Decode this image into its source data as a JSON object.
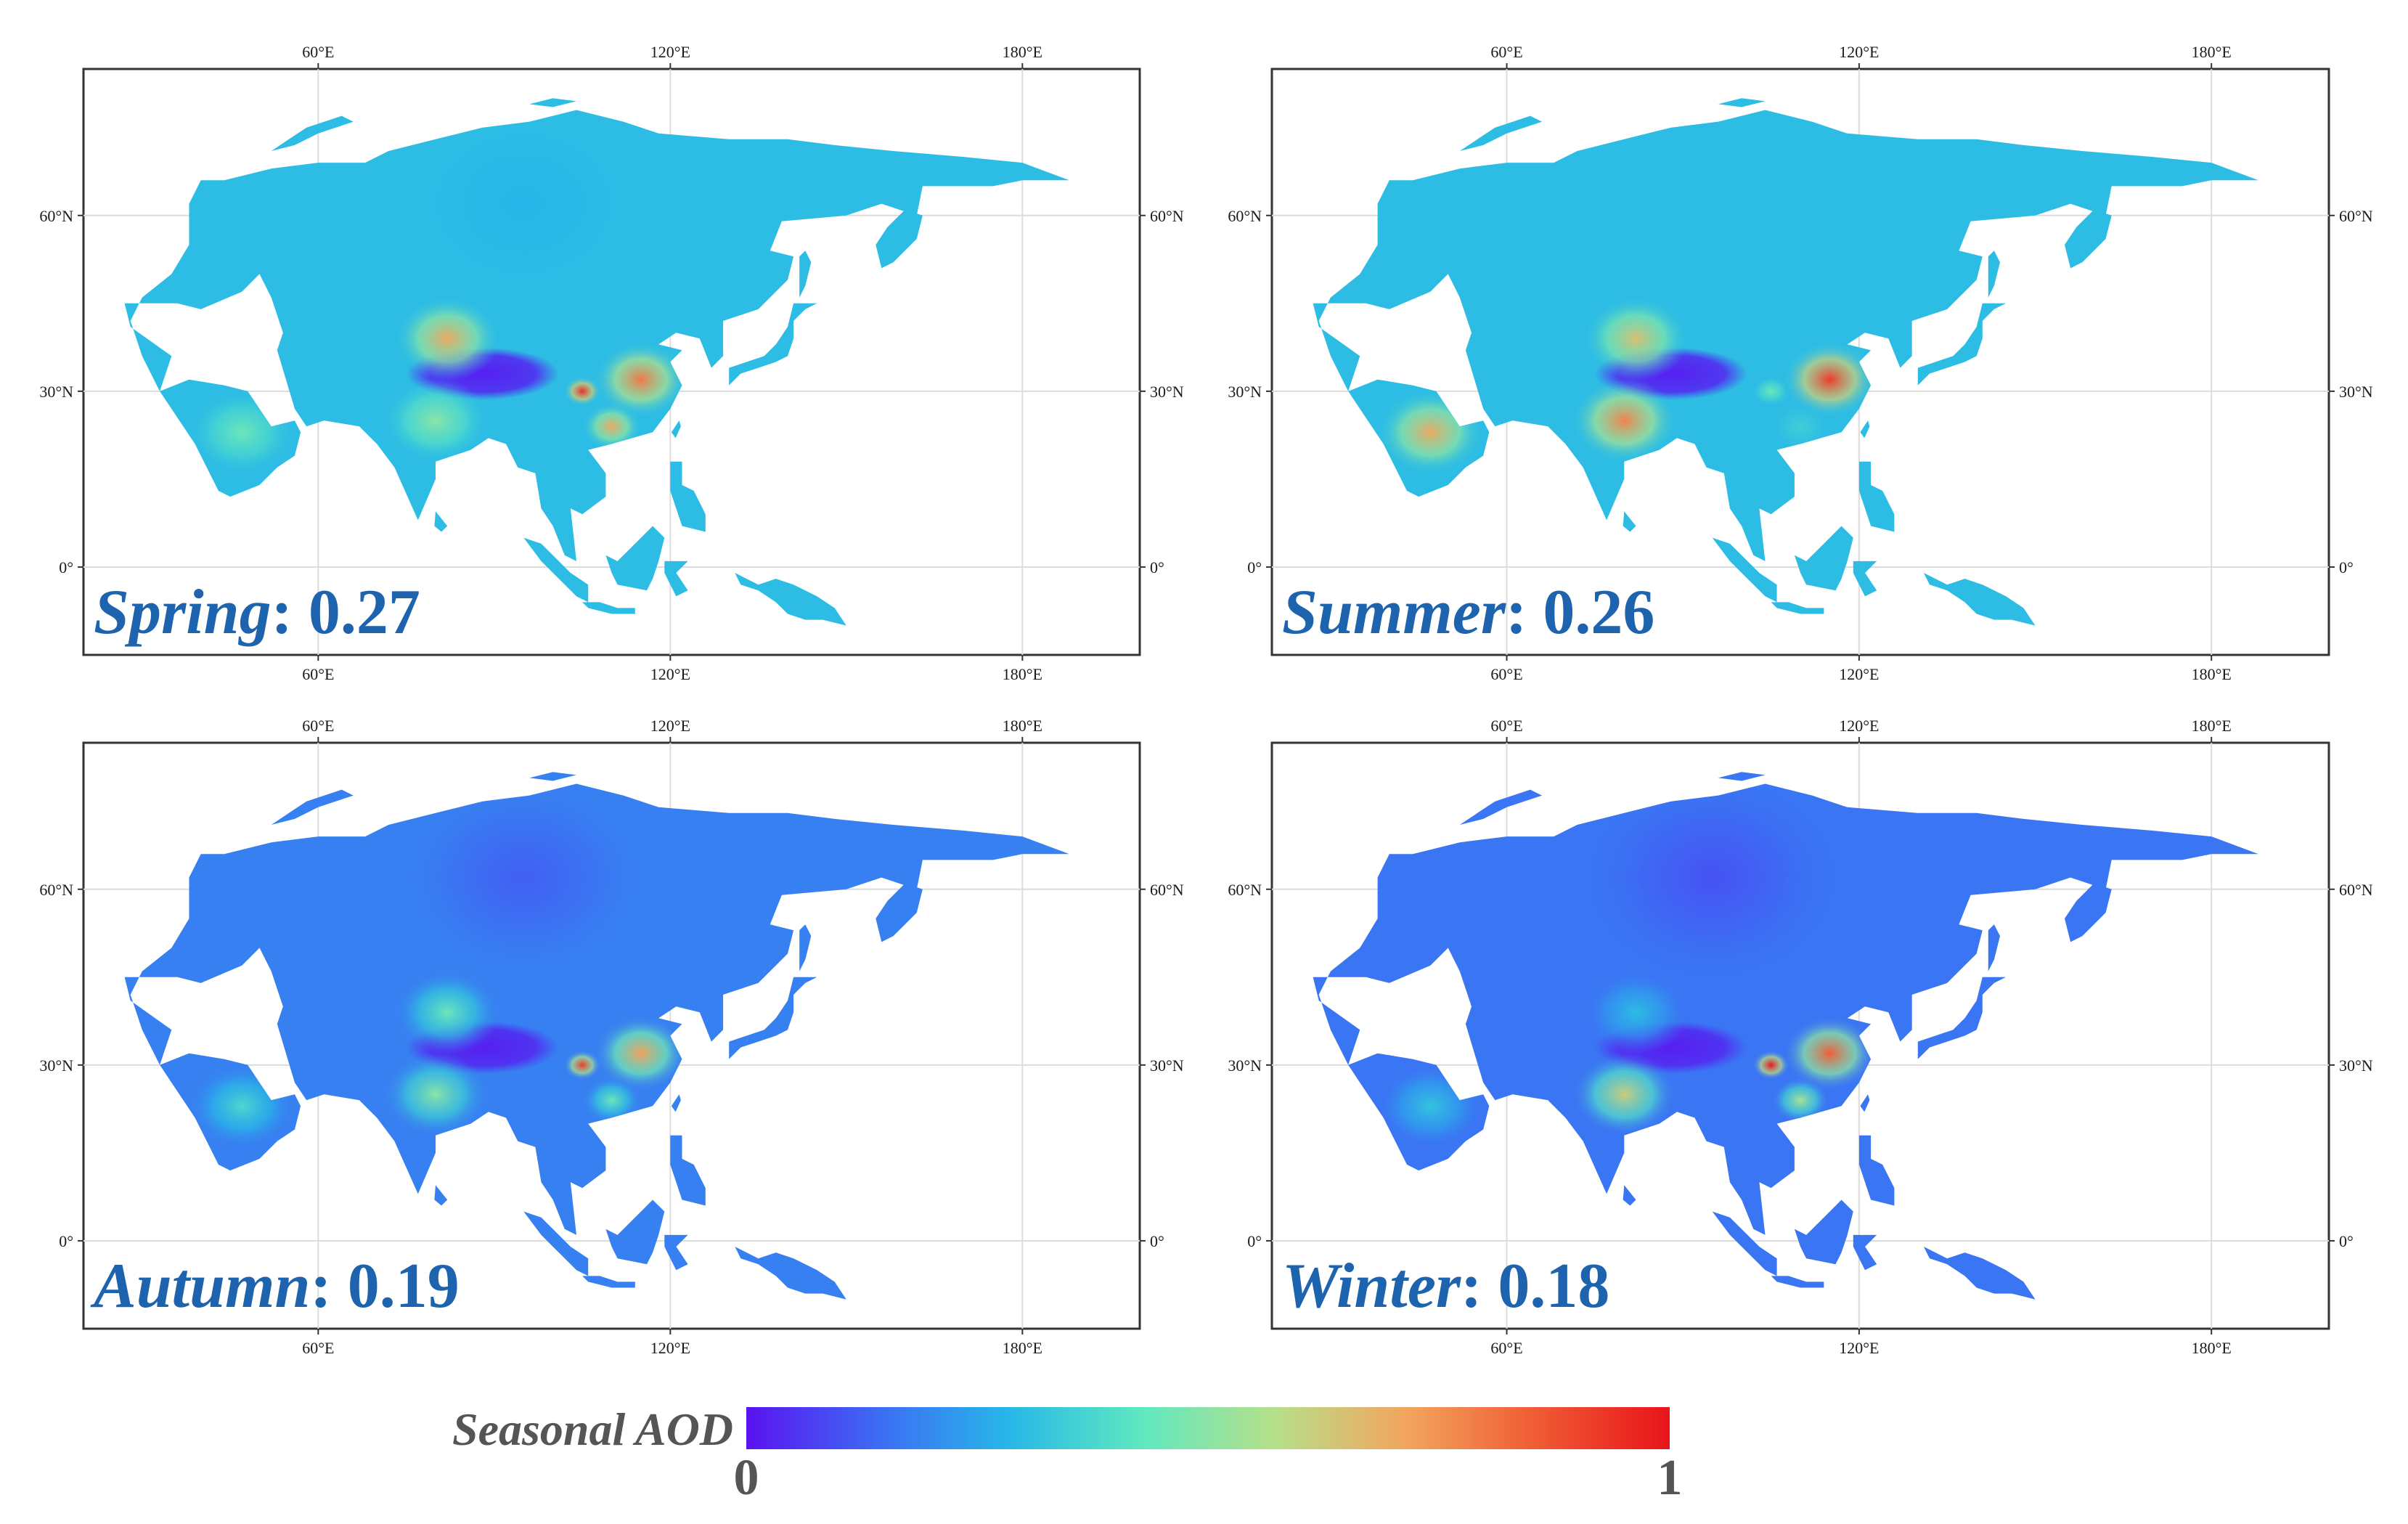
{
  "figure": {
    "colors": {
      "ramp": [
        "#5a12f0",
        "#3d6cf4",
        "#27b8e8",
        "#5fe8c0",
        "#b6e08a",
        "#f2a55e",
        "#f05a34",
        "#e8141a"
      ],
      "label": "#1e63ad",
      "colorbar_text": "#555555"
    },
    "axes": {
      "lon_ticks": [
        {
          "value": 60,
          "label": "60°E"
        },
        {
          "value": 120,
          "label": "120°E"
        },
        {
          "value": 180,
          "label": "180°E"
        }
      ],
      "lat_ticks": [
        {
          "value": 60,
          "label": "60°N"
        },
        {
          "value": 30,
          "label": "30°N"
        },
        {
          "value": 0,
          "label": "0°"
        }
      ],
      "lon_range": [
        20,
        200
      ],
      "lat_range": [
        -15,
        85
      ]
    },
    "panels": [
      {
        "season": "Spring",
        "mean_label": ": 0.27",
        "mean_value": 0.27,
        "base_level": 0.3,
        "hotspots": {
          "taklimakan": 0.7,
          "sichuan": 0.95,
          "east_china": 0.8,
          "india": 0.5,
          "arabia": 0.45,
          "south_china": 0.7,
          "siberia": 0.28
        }
      },
      {
        "season": "Summer",
        "mean_label": ": 0.26",
        "mean_value": 0.26,
        "base_level": 0.3,
        "hotspots": {
          "taklimakan": 0.65,
          "sichuan": 0.45,
          "east_china": 0.92,
          "india": 0.78,
          "arabia": 0.7,
          "south_china": 0.35,
          "siberia": 0.3
        }
      },
      {
        "season": "Autumn",
        "mean_label": ": 0.19",
        "mean_value": 0.19,
        "base_level": 0.18,
        "hotspots": {
          "taklimakan": 0.45,
          "sichuan": 0.92,
          "east_china": 0.72,
          "india": 0.5,
          "arabia": 0.38,
          "south_china": 0.45,
          "siberia": 0.12
        }
      },
      {
        "season": "Winter",
        "mean_label": ": 0.18",
        "mean_value": 0.18,
        "base_level": 0.16,
        "hotspots": {
          "taklimakan": 0.3,
          "sichuan": 1.0,
          "east_china": 0.85,
          "india": 0.62,
          "arabia": 0.32,
          "south_china": 0.55,
          "siberia": 0.1
        }
      }
    ],
    "colorbar": {
      "title": "Seasonal AOD",
      "min_label": "0",
      "max_label": "1",
      "min": 0,
      "max": 1
    }
  }
}
